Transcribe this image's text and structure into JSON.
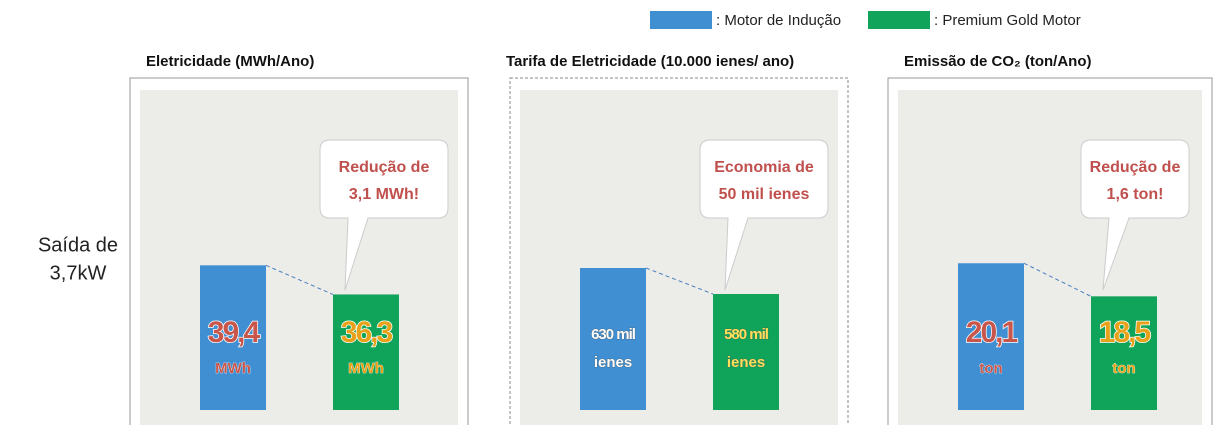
{
  "legend": [
    {
      "label": ": Motor de Indução",
      "color": "#3f8fd2"
    },
    {
      "label": ": Premium Gold Motor",
      "color": "#10a35a"
    }
  ],
  "row_label": [
    "Saída de",
    "3,7kW"
  ],
  "chart_data": [
    {
      "type": "bar",
      "title": "Eletricidade (MWh/Ano)",
      "categories": [
        null,
        null
      ],
      "values": [
        39.4,
        36.3
      ],
      "value_labels": [
        "39,4",
        "36,3"
      ],
      "unit": "MWh",
      "colors": [
        "#3f8fd2",
        "#10a35a"
      ],
      "label_colors": [
        "#c8564b",
        "#e8a21a"
      ],
      "ylim": [
        24,
        57
      ],
      "annotation": [
        "Redução de",
        "3,1 MWh!"
      ]
    },
    {
      "type": "bar",
      "title": "Tarifa de Eletricidade (10.000 ienes/ ano)",
      "categories": [
        null,
        null
      ],
      "values": [
        630,
        580
      ],
      "value_labels": [
        "630 mil",
        "580 mil"
      ],
      "unit": "ienes",
      "colors": [
        "#3f8fd2",
        "#10a35a"
      ],
      "label_colors": [
        "#ffffff",
        "#ffe25a"
      ],
      "ylim": [
        357,
        953
      ],
      "annotation": [
        "Economia de",
        "50 mil ienes"
      ]
    },
    {
      "type": "bar",
      "title": "Emissão de CO₂ (ton/Ano)",
      "categories": [
        null,
        null
      ],
      "values": [
        20.1,
        18.5
      ],
      "value_labels": [
        "20,1",
        "18,5"
      ],
      "unit": "ton",
      "colors": [
        "#3f8fd2",
        "#10a35a"
      ],
      "label_colors": [
        "#c8564b",
        "#e8a21a"
      ],
      "ylim": [
        13,
        28
      ],
      "annotation": [
        "Redução de",
        "1,6 ton!"
      ]
    }
  ]
}
